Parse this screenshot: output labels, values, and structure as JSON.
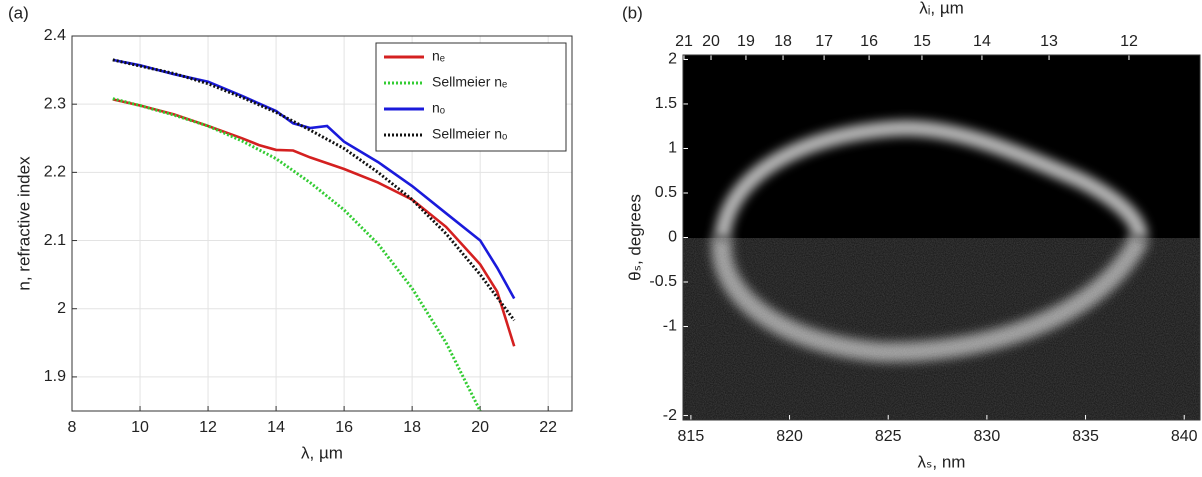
{
  "chart_data": [
    {
      "type": "line",
      "panel_label": "(a)",
      "x_label": "λ, µm",
      "y_label": "n, refractive index",
      "xlim": [
        8,
        22.7
      ],
      "xticks": [
        8,
        10,
        12,
        14,
        16,
        18,
        20,
        22
      ],
      "ylim": [
        1.85,
        2.4
      ],
      "yticks": [
        1.9,
        2,
        2.1,
        2.2,
        2.3,
        2.4
      ],
      "grid": true,
      "legend": "upper right",
      "series": [
        {
          "name": "nₑ",
          "color": "#d42020",
          "linestyle": "solid",
          "x": [
            9.2,
            10,
            11,
            12,
            13,
            13.5,
            14,
            14.5,
            15,
            16,
            17,
            18,
            19,
            20,
            20.5,
            21
          ],
          "values": [
            2.307,
            2.298,
            2.285,
            2.268,
            2.25,
            2.24,
            2.233,
            2.232,
            2.222,
            2.205,
            2.185,
            2.16,
            2.12,
            2.065,
            2.025,
            1.945
          ]
        },
        {
          "name": "Sellmeier nₑ",
          "color": "#33cc33",
          "linestyle": "dotted",
          "x": [
            9.2,
            10,
            11,
            12,
            13,
            14,
            15,
            16,
            17,
            18,
            19,
            20
          ],
          "values": [
            2.308,
            2.298,
            2.284,
            2.268,
            2.246,
            2.22,
            2.185,
            2.145,
            2.095,
            2.03,
            1.95,
            1.85
          ]
        },
        {
          "name": "nₒ",
          "color": "#1a1adb",
          "linestyle": "solid",
          "x": [
            9.2,
            10,
            11,
            12,
            13,
            14,
            14.5,
            15,
            15.5,
            16,
            17,
            18,
            19,
            20,
            20.5,
            21
          ],
          "values": [
            2.365,
            2.357,
            2.344,
            2.333,
            2.312,
            2.29,
            2.272,
            2.265,
            2.268,
            2.245,
            2.215,
            2.18,
            2.14,
            2.1,
            2.06,
            2.015
          ]
        },
        {
          "name": "Sellmeier nₒ",
          "color": "#111111",
          "linestyle": "dotted",
          "x": [
            9.2,
            10,
            11,
            12,
            13,
            14,
            15,
            16,
            17,
            18,
            19,
            20,
            21
          ],
          "values": [
            2.365,
            2.356,
            2.345,
            2.33,
            2.31,
            2.288,
            2.262,
            2.235,
            2.2,
            2.16,
            2.11,
            2.05,
            1.983
          ]
        }
      ]
    },
    {
      "type": "image",
      "panel_label": "(b)",
      "x_label": "λₛ, nm",
      "y_label": "θₛ, degrees",
      "x2_label": "λᵢ, µm",
      "xlim": [
        814.6,
        840.8
      ],
      "xticks": [
        815,
        820,
        825,
        830,
        835,
        840
      ],
      "x2ticks": [
        {
          "value": 814.65,
          "label": "21"
        },
        {
          "value": 816.02,
          "label": "20"
        },
        {
          "value": 817.79,
          "label": "19"
        },
        {
          "value": 819.67,
          "label": "18"
        },
        {
          "value": 821.75,
          "label": "17"
        },
        {
          "value": 824.03,
          "label": "16"
        },
        {
          "value": 826.71,
          "label": "15"
        },
        {
          "value": 829.75,
          "label": "14"
        },
        {
          "value": 833.15,
          "label": "13"
        },
        {
          "value": 837.2,
          "label": "12"
        }
      ],
      "ylim": [
        -2.05,
        2.05
      ],
      "yticks": [
        2,
        1.5,
        1,
        0.5,
        0,
        -0.5,
        -1,
        -2
      ]
    }
  ]
}
